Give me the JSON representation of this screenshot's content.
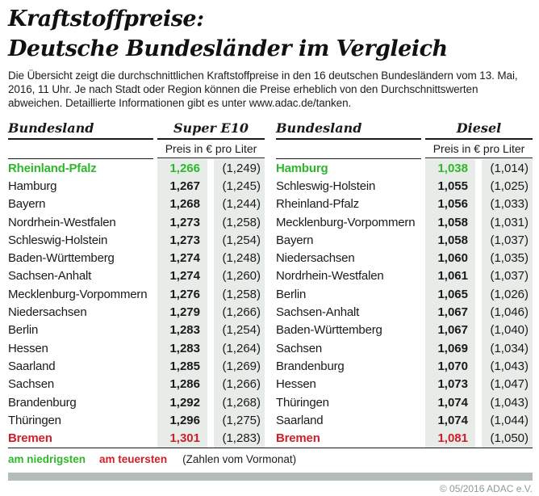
{
  "title": {
    "line1": "Kraftstoffpreise:",
    "line2": "Deutsche Bundesländer im Vergleich"
  },
  "intro": "Die Übersicht zeigt die durchschnittlichen Kraftstoffpreise in den 16 deutschen Bundesländern vom 13. Mai, 2016, 11 Uhr. Je nach Stadt oder Region können die Preise erheblich von den Durchschnittswerten abweichen. Detaillierte Informationen gibt es unter www.adac.de/tanken.",
  "colors": {
    "lowest_green": "#2eb82a",
    "highest_red": "#d01f28",
    "price_cell_shade": "#e7ece9",
    "bottom_bar_gray": "#b2bcb8",
    "copyright_gray": "#8f9996"
  },
  "tables": [
    {
      "land_header": "Bundesland",
      "fuel_header": "Super E10",
      "price_subheader": "Preis in € pro Liter",
      "rows": [
        {
          "land": "Rheinland-Pfalz",
          "price": "1,266",
          "prev": "(1,249)",
          "status": "lowest"
        },
        {
          "land": "Hamburg",
          "price": "1,267",
          "prev": "(1,245)",
          "status": "normal"
        },
        {
          "land": "Bayern",
          "price": "1,268",
          "prev": "(1,244)",
          "status": "normal"
        },
        {
          "land": "Nordrhein-Westfalen",
          "price": "1,273",
          "prev": "(1,258)",
          "status": "normal"
        },
        {
          "land": "Schleswig-Holstein",
          "price": "1,273",
          "prev": "(1,254)",
          "status": "normal"
        },
        {
          "land": "Baden-Württemberg",
          "price": "1,274",
          "prev": "(1,248)",
          "status": "normal"
        },
        {
          "land": "Sachsen-Anhalt",
          "price": "1,274",
          "prev": "(1,260)",
          "status": "normal"
        },
        {
          "land": "Mecklenburg-Vorpommern",
          "price": "1,276",
          "prev": "(1,258)",
          "status": "normal"
        },
        {
          "land": "Niedersachsen",
          "price": "1,279",
          "prev": "(1,266)",
          "status": "normal"
        },
        {
          "land": "Berlin",
          "price": "1,283",
          "prev": "(1,254)",
          "status": "normal"
        },
        {
          "land": "Hessen",
          "price": "1,283",
          "prev": "(1,264)",
          "status": "normal"
        },
        {
          "land": "Saarland",
          "price": "1,285",
          "prev": "(1,269)",
          "status": "normal"
        },
        {
          "land": "Sachsen",
          "price": "1,286",
          "prev": "(1,266)",
          "status": "normal"
        },
        {
          "land": "Brandenburg",
          "price": "1,292",
          "prev": "(1,268)",
          "status": "normal"
        },
        {
          "land": "Thüringen",
          "price": "1,296",
          "prev": "(1,275)",
          "status": "normal"
        },
        {
          "land": "Bremen",
          "price": "1,301",
          "prev": "(1,283)",
          "status": "highest"
        }
      ]
    },
    {
      "land_header": "Bundesland",
      "fuel_header": "Diesel",
      "price_subheader": "Preis in € pro Liter",
      "rows": [
        {
          "land": "Hamburg",
          "price": "1,038",
          "prev": "(1,014)",
          "status": "lowest"
        },
        {
          "land": "Schleswig-Holstein",
          "price": "1,055",
          "prev": "(1,025)",
          "status": "normal"
        },
        {
          "land": "Rheinland-Pfalz",
          "price": "1,056",
          "prev": "(1,033)",
          "status": "normal"
        },
        {
          "land": "Mecklenburg-Vorpommern",
          "price": "1,058",
          "prev": "(1,031)",
          "status": "normal"
        },
        {
          "land": "Bayern",
          "price": "1,058",
          "prev": "(1,037)",
          "status": "normal"
        },
        {
          "land": "Niedersachsen",
          "price": "1,060",
          "prev": "(1,035)",
          "status": "normal"
        },
        {
          "land": "Nordrhein-Westfalen",
          "price": "1,061",
          "prev": "(1,037)",
          "status": "normal"
        },
        {
          "land": "Berlin",
          "price": "1,065",
          "prev": "(1,026)",
          "status": "normal"
        },
        {
          "land": "Sachsen-Anhalt",
          "price": "1,067",
          "prev": "(1,046)",
          "status": "normal"
        },
        {
          "land": "Baden-Württemberg",
          "price": "1,067",
          "prev": "(1,040)",
          "status": "normal"
        },
        {
          "land": "Sachsen",
          "price": "1,069",
          "prev": "(1,034)",
          "status": "normal"
        },
        {
          "land": "Brandenburg",
          "price": "1,070",
          "prev": "(1,043)",
          "status": "normal"
        },
        {
          "land": "Hessen",
          "price": "1,073",
          "prev": "(1,047)",
          "status": "normal"
        },
        {
          "land": "Thüringen",
          "price": "1,074",
          "prev": "(1,043)",
          "status": "normal"
        },
        {
          "land": "Saarland",
          "price": "1,074",
          "prev": "(1,044)",
          "status": "normal"
        },
        {
          "land": "Bremen",
          "price": "1,081",
          "prev": "(1,050)",
          "status": "highest"
        }
      ]
    }
  ],
  "legend": {
    "lowest_label": "am niedrigsten",
    "highest_label": "am teuersten",
    "note": "(Zahlen vom Vormonat)"
  },
  "copyright": "© 05/2016 ADAC e.V.",
  "chart_data": [
    {
      "type": "table",
      "title": "Super E10 — Preis in € pro Liter (Vormonat in Klammern)",
      "columns": [
        "Bundesland",
        "Preis",
        "Vormonat"
      ],
      "rows": [
        [
          "Rheinland-Pfalz",
          1.266,
          1.249
        ],
        [
          "Hamburg",
          1.267,
          1.245
        ],
        [
          "Bayern",
          1.268,
          1.244
        ],
        [
          "Nordrhein-Westfalen",
          1.273,
          1.258
        ],
        [
          "Schleswig-Holstein",
          1.273,
          1.254
        ],
        [
          "Baden-Württemberg",
          1.274,
          1.248
        ],
        [
          "Sachsen-Anhalt",
          1.274,
          1.26
        ],
        [
          "Mecklenburg-Vorpommern",
          1.276,
          1.258
        ],
        [
          "Niedersachsen",
          1.279,
          1.266
        ],
        [
          "Berlin",
          1.283,
          1.254
        ],
        [
          "Hessen",
          1.283,
          1.264
        ],
        [
          "Saarland",
          1.285,
          1.269
        ],
        [
          "Sachsen",
          1.286,
          1.266
        ],
        [
          "Brandenburg",
          1.292,
          1.268
        ],
        [
          "Thüringen",
          1.296,
          1.275
        ],
        [
          "Bremen",
          1.301,
          1.283
        ]
      ],
      "annotations": {
        "lowest": "Rheinland-Pfalz",
        "highest": "Bremen"
      }
    },
    {
      "type": "table",
      "title": "Diesel — Preis in € pro Liter (Vormonat in Klammern)",
      "columns": [
        "Bundesland",
        "Preis",
        "Vormonat"
      ],
      "rows": [
        [
          "Hamburg",
          1.038,
          1.014
        ],
        [
          "Schleswig-Holstein",
          1.055,
          1.025
        ],
        [
          "Rheinland-Pfalz",
          1.056,
          1.033
        ],
        [
          "Mecklenburg-Vorpommern",
          1.058,
          1.031
        ],
        [
          "Bayern",
          1.058,
          1.037
        ],
        [
          "Niedersachsen",
          1.06,
          1.035
        ],
        [
          "Nordrhein-Westfalen",
          1.061,
          1.037
        ],
        [
          "Berlin",
          1.065,
          1.026
        ],
        [
          "Sachsen-Anhalt",
          1.067,
          1.046
        ],
        [
          "Baden-Württemberg",
          1.067,
          1.04
        ],
        [
          "Sachsen",
          1.069,
          1.034
        ],
        [
          "Brandenburg",
          1.07,
          1.043
        ],
        [
          "Hessen",
          1.073,
          1.047
        ],
        [
          "Thüringen",
          1.074,
          1.043
        ],
        [
          "Saarland",
          1.074,
          1.044
        ],
        [
          "Bremen",
          1.081,
          1.05
        ]
      ],
      "annotations": {
        "lowest": "Hamburg",
        "highest": "Bremen"
      }
    }
  ]
}
